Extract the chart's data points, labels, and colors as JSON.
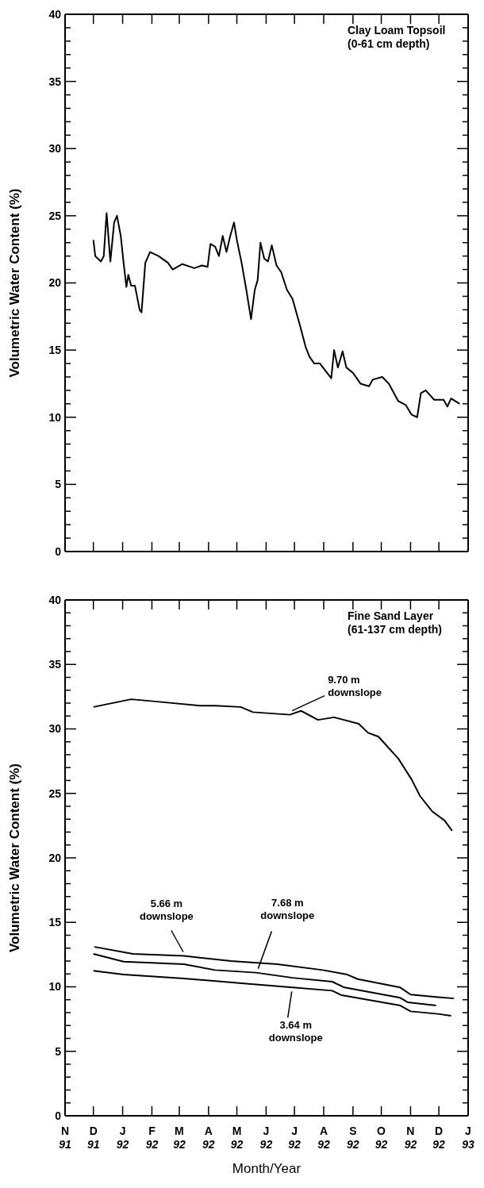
{
  "chart_data": [
    {
      "type": "line",
      "title": "Clay Loam Topsoil",
      "subtitle": "(0-61 cm depth)",
      "ylabel": "Volumetric Water Content (%)",
      "tick_labels": "y",
      "marker": "none",
      "line_style": "solid",
      "xlim": [
        "1991-11-01",
        "1993-01-01"
      ],
      "xticks": [
        {
          "value": "1991-11-01",
          "label": null
        },
        {
          "value": "1991-12-01",
          "label": null
        },
        {
          "value": "1992-01-01",
          "label": null
        },
        {
          "value": "1992-02-01",
          "label": null
        },
        {
          "value": "1992-03-01",
          "label": null
        },
        {
          "value": "1992-04-01",
          "label": null
        },
        {
          "value": "1992-05-01",
          "label": null
        },
        {
          "value": "1992-06-01",
          "label": null
        },
        {
          "value": "1992-07-01",
          "label": null
        },
        {
          "value": "1992-08-01",
          "label": null
        },
        {
          "value": "1992-09-01",
          "label": null
        },
        {
          "value": "1992-10-01",
          "label": null
        },
        {
          "value": "1992-11-01",
          "label": null
        },
        {
          "value": "1992-12-01",
          "label": null
        },
        {
          "value": "1993-01-01",
          "label": null
        }
      ],
      "ylim": [
        0,
        40
      ],
      "yticks": [
        0,
        {
          "value": 1,
          "label": null
        },
        {
          "value": 2,
          "label": null
        },
        {
          "value": 3,
          "label": null
        },
        {
          "value": 4,
          "label": null
        },
        5,
        {
          "value": 6,
          "label": null
        },
        {
          "value": 7,
          "label": null
        },
        {
          "value": 8,
          "label": null
        },
        {
          "value": 9,
          "label": null
        },
        10,
        {
          "value": 11,
          "label": null
        },
        {
          "value": 12,
          "label": null
        },
        {
          "value": 13,
          "label": null
        },
        {
          "value": 14,
          "label": null
        },
        15,
        {
          "value": 16,
          "label": null
        },
        {
          "value": 17,
          "label": null
        },
        {
          "value": 18,
          "label": null
        },
        {
          "value": 19,
          "label": null
        },
        20,
        {
          "value": 21,
          "label": null
        },
        {
          "value": 22,
          "label": null
        },
        {
          "value": 23,
          "label": null
        },
        {
          "value": 24,
          "label": null
        },
        25,
        {
          "value": 26,
          "label": null
        },
        {
          "value": 27,
          "label": null
        },
        {
          "value": 28,
          "label": null
        },
        {
          "value": 29,
          "label": null
        },
        30,
        {
          "value": 31,
          "label": null
        },
        {
          "value": 32,
          "label": null
        },
        {
          "value": 33,
          "label": null
        },
        {
          "value": 34,
          "label": null
        },
        35,
        {
          "value": 36,
          "label": null
        },
        {
          "value": 37,
          "label": null
        },
        {
          "value": 38,
          "label": null
        },
        {
          "value": 39,
          "label": null
        },
        40
      ],
      "series": [
        {
          "color": "#000000",
          "x": [
            "1991-12-01",
            "1991-12-03",
            "1991-12-09",
            "1991-12-12",
            "1991-12-15",
            "1991-12-19",
            "1991-12-23",
            "1991-12-26",
            "1991-12-30",
            "1992-01-02",
            "1992-01-05",
            "1992-01-07",
            "1992-01-10",
            "1992-01-14",
            "1992-01-19",
            "1992-01-21",
            "1992-01-25",
            "1992-01-30",
            "1992-02-08",
            "1992-02-18",
            "1992-02-23",
            "1992-03-04",
            "1992-03-17",
            "1992-03-25",
            "1992-03-31",
            "1992-04-03",
            "1992-04-08",
            "1992-04-12",
            "1992-04-16",
            "1992-04-20",
            "1992-04-24",
            "1992-04-28",
            "1992-05-01",
            "1992-05-06",
            "1992-05-11",
            "1992-05-16",
            "1992-05-20",
            "1992-05-23",
            "1992-05-26",
            "1992-05-30",
            "1992-06-03",
            "1992-06-07",
            "1992-06-12",
            "1992-06-17",
            "1992-06-23",
            "1992-06-29",
            "1992-07-07",
            "1992-07-13",
            "1992-07-17",
            "1992-07-22",
            "1992-07-28",
            "1992-08-09",
            "1992-08-12",
            "1992-08-16",
            "1992-08-21",
            "1992-08-25",
            "1992-09-01",
            "1992-09-09",
            "1992-09-18",
            "1992-09-22",
            "1992-10-02",
            "1992-10-09",
            "1992-10-19",
            "1992-10-27",
            "1992-11-02",
            "1992-11-08",
            "1992-11-12",
            "1992-11-17",
            "1992-11-26",
            "1992-12-06",
            "1992-12-10",
            "1992-12-14",
            "1992-12-23"
          ],
          "values": [
            23.2,
            22.0,
            21.6,
            22.0,
            25.2,
            21.6,
            24.5,
            25.0,
            23.5,
            21.5,
            19.7,
            20.6,
            19.8,
            19.8,
            18.0,
            17.8,
            21.5,
            22.3,
            22.0,
            21.5,
            21.0,
            21.4,
            21.1,
            21.3,
            21.2,
            22.9,
            22.7,
            22.0,
            23.5,
            22.3,
            23.5,
            24.5,
            23.2,
            21.5,
            19.5,
            17.3,
            19.5,
            20.2,
            23.0,
            21.8,
            21.6,
            22.8,
            21.3,
            20.8,
            19.5,
            18.8,
            16.8,
            15.2,
            14.5,
            14.0,
            14.0,
            12.9,
            15.0,
            13.7,
            14.9,
            13.7,
            13.3,
            12.5,
            12.3,
            12.8,
            13.0,
            12.5,
            11.2,
            10.9,
            10.2,
            10.0,
            11.8,
            12.0,
            11.3,
            11.3,
            10.8,
            11.4,
            11.0
          ]
        }
      ]
    },
    {
      "type": "line",
      "title": "Fine Sand Layer",
      "subtitle": "(61-137 cm depth)",
      "xlabel": "Month/Year",
      "ylabel": "Volumetric Water Content (%)",
      "marker": "none",
      "line_style": "solid",
      "xlim": [
        "1991-11-01",
        "1993-01-01"
      ],
      "xticks": [
        {
          "value": "1991-11-01",
          "label": "N 91"
        },
        {
          "value": "1991-12-01",
          "label": "D 91"
        },
        {
          "value": "1992-01-01",
          "label": "J 92"
        },
        {
          "value": "1992-02-01",
          "label": "F 92"
        },
        {
          "value": "1992-03-01",
          "label": "M 92"
        },
        {
          "value": "1992-04-01",
          "label": "A 92"
        },
        {
          "value": "1992-05-01",
          "label": "M 92"
        },
        {
          "value": "1992-06-01",
          "label": "J 92"
        },
        {
          "value": "1992-07-01",
          "label": "J 92"
        },
        {
          "value": "1992-08-01",
          "label": "A 92"
        },
        {
          "value": "1992-09-01",
          "label": "S 92"
        },
        {
          "value": "1992-10-01",
          "label": "O 92"
        },
        {
          "value": "1992-11-01",
          "label": "N 92"
        },
        {
          "value": "1992-12-01",
          "label": "D 92"
        },
        {
          "value": "1993-01-01",
          "label": "J 93"
        }
      ],
      "ylim": [
        0,
        40
      ],
      "yticks": [
        0,
        {
          "value": 1,
          "label": null
        },
        {
          "value": 2,
          "label": null
        },
        {
          "value": 3,
          "label": null
        },
        {
          "value": 4,
          "label": null
        },
        5,
        {
          "value": 6,
          "label": null
        },
        {
          "value": 7,
          "label": null
        },
        {
          "value": 8,
          "label": null
        },
        {
          "value": 9,
          "label": null
        },
        10,
        {
          "value": 11,
          "label": null
        },
        {
          "value": 12,
          "label": null
        },
        {
          "value": 13,
          "label": null
        },
        {
          "value": 14,
          "label": null
        },
        15,
        {
          "value": 16,
          "label": null
        },
        {
          "value": 17,
          "label": null
        },
        {
          "value": 18,
          "label": null
        },
        {
          "value": 19,
          "label": null
        },
        20,
        {
          "value": 21,
          "label": null
        },
        {
          "value": 22,
          "label": null
        },
        {
          "value": 23,
          "label": null
        },
        {
          "value": 24,
          "label": null
        },
        25,
        {
          "value": 26,
          "label": null
        },
        {
          "value": 27,
          "label": null
        },
        {
          "value": 28,
          "label": null
        },
        {
          "value": 29,
          "label": null
        },
        30,
        {
          "value": 31,
          "label": null
        },
        {
          "value": 32,
          "label": null
        },
        {
          "value": 33,
          "label": null
        },
        {
          "value": 34,
          "label": null
        },
        35,
        {
          "value": 36,
          "label": null
        },
        {
          "value": 37,
          "label": null
        },
        {
          "value": 38,
          "label": null
        },
        {
          "value": 39,
          "label": null
        },
        40
      ],
      "series": [
        {
          "name": "9.70 m downslope",
          "color": "#000000",
          "x": [
            "1991-12-01",
            "1992-01-10",
            "1992-02-09",
            "1992-03-23",
            "1992-04-08",
            "1992-05-05",
            "1992-05-18",
            "1992-06-26",
            "1992-07-08",
            "1992-07-26",
            "1992-08-12",
            "1992-09-07",
            "1992-09-17",
            "1992-09-28",
            "1992-10-19",
            "1992-11-02",
            "1992-11-11",
            "1992-11-24",
            "1992-12-07",
            "1992-12-15"
          ],
          "values": [
            31.7,
            32.3,
            32.1,
            31.8,
            31.8,
            31.7,
            31.3,
            31.1,
            31.4,
            30.7,
            30.9,
            30.4,
            29.7,
            29.4,
            27.7,
            26.1,
            24.8,
            23.6,
            22.9,
            22.1
          ]
        },
        {
          "name": "5.66 m downslope",
          "color": "#000000",
          "x": [
            "1991-12-02",
            "1992-01-12",
            "1992-03-06",
            "1992-04-25",
            "1992-06-13",
            "1992-07-31",
            "1992-08-26",
            "1992-09-06",
            "1992-10-21",
            "1992-11-01",
            "1992-11-30",
            "1992-12-17"
          ],
          "values": [
            13.1,
            12.55,
            12.4,
            12.0,
            11.75,
            11.3,
            10.95,
            10.6,
            9.95,
            9.4,
            9.2,
            9.1
          ]
        },
        {
          "name": "7.68 m downslope",
          "color": "#000000",
          "x": [
            "1991-12-01",
            "1992-01-02",
            "1992-03-06",
            "1992-04-08",
            "1992-05-21",
            "1992-06-29",
            "1992-08-10",
            "1992-08-23",
            "1992-10-21",
            "1992-10-29",
            "1992-11-28"
          ],
          "values": [
            12.55,
            11.95,
            11.75,
            11.3,
            11.1,
            10.7,
            10.4,
            9.95,
            9.15,
            8.8,
            8.55
          ]
        },
        {
          "name": "3.64 m downslope",
          "color": "#000000",
          "x": [
            "1991-12-01",
            "1992-01-02",
            "1992-03-06",
            "1992-05-11",
            "1992-06-29",
            "1992-08-10",
            "1992-08-20",
            "1992-10-21",
            "1992-11-01",
            "1992-11-30",
            "1992-12-14"
          ],
          "values": [
            11.25,
            10.95,
            10.65,
            10.25,
            9.95,
            9.7,
            9.35,
            8.55,
            8.1,
            7.9,
            7.75
          ]
        }
      ]
    }
  ]
}
